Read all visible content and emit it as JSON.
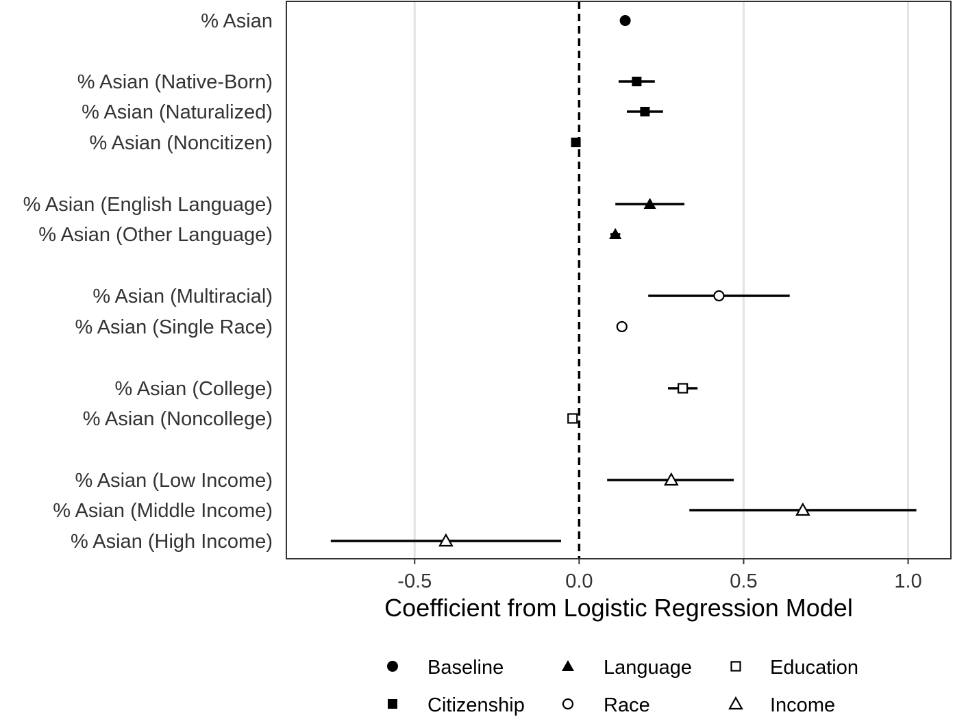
{
  "chart_data": {
    "type": "scatter",
    "subtype": "coefficient-plot-with-error-bars",
    "title": "",
    "xlabel": "Coefficient from Logistic Regression Model",
    "ylabel": "",
    "xlim": [
      -0.89,
      1.13
    ],
    "x_ticks": [
      -0.5,
      0.0,
      0.5,
      1.0
    ],
    "x_tick_labels": [
      "-0.5",
      "0.0",
      "0.5",
      "1.0"
    ],
    "grid": "vertical major lines",
    "reference_line": {
      "x": 0,
      "style": "dashed"
    },
    "categories": [
      "% Asian",
      "% Asian (Native-Born)",
      "% Asian (Naturalized)",
      "% Asian (Noncitizen)",
      "% Asian (English Language)",
      "% Asian (Other Language)",
      "% Asian (Multiracial)",
      "% Asian (Single Race)",
      "% Asian (College)",
      "% Asian (Noncollege)",
      "% Asian (Low Income)",
      "% Asian (Middle Income)",
      "% Asian (High Income)"
    ],
    "points": [
      {
        "label": "% Asian",
        "group": "Baseline",
        "estimate": 0.14,
        "low": 0.13,
        "high": 0.15
      },
      {
        "label": "% Asian (Native-Born)",
        "group": "Citizenship",
        "estimate": 0.175,
        "low": 0.12,
        "high": 0.23
      },
      {
        "label": "% Asian (Naturalized)",
        "group": "Citizenship",
        "estimate": 0.2,
        "low": 0.145,
        "high": 0.255
      },
      {
        "label": "% Asian (Noncitizen)",
        "group": "Citizenship",
        "estimate": -0.01,
        "low": -0.015,
        "high": -0.005
      },
      {
        "label": "% Asian (English Language)",
        "group": "Language",
        "estimate": 0.215,
        "low": 0.11,
        "high": 0.32
      },
      {
        "label": "% Asian (Other Language)",
        "group": "Language",
        "estimate": 0.11,
        "low": 0.095,
        "high": 0.125
      },
      {
        "label": "% Asian (Multiracial)",
        "group": "Race",
        "estimate": 0.425,
        "low": 0.21,
        "high": 0.64
      },
      {
        "label": "% Asian (Single Race)",
        "group": "Race",
        "estimate": 0.13,
        "low": 0.12,
        "high": 0.14
      },
      {
        "label": "% Asian (College)",
        "group": "Education",
        "estimate": 0.315,
        "low": 0.27,
        "high": 0.36
      },
      {
        "label": "% Asian (Noncollege)",
        "group": "Education",
        "estimate": -0.02,
        "low": -0.03,
        "high": -0.01
      },
      {
        "label": "% Asian (Low Income)",
        "group": "Income",
        "estimate": 0.28,
        "low": 0.085,
        "high": 0.47
      },
      {
        "label": "% Asian (Middle Income)",
        "group": "Income",
        "estimate": 0.68,
        "low": 0.335,
        "high": 1.025
      },
      {
        "label": "% Asian (High Income)",
        "group": "Income",
        "estimate": -0.405,
        "low": -0.755,
        "high": -0.055
      }
    ],
    "legend": {
      "placement": "bottom",
      "entries": [
        {
          "name": "Baseline",
          "shape": "filled-circle"
        },
        {
          "name": "Language",
          "shape": "filled-triangle"
        },
        {
          "name": "Education",
          "shape": "open-square"
        },
        {
          "name": "Citizenship",
          "shape": "filled-square"
        },
        {
          "name": "Race",
          "shape": "open-circle"
        },
        {
          "name": "Income",
          "shape": "open-triangle"
        }
      ]
    },
    "colors": {
      "marker": "#000000",
      "grid": "#e3e3e3",
      "axis_text": "#333333",
      "panel_border": "#333333"
    }
  }
}
